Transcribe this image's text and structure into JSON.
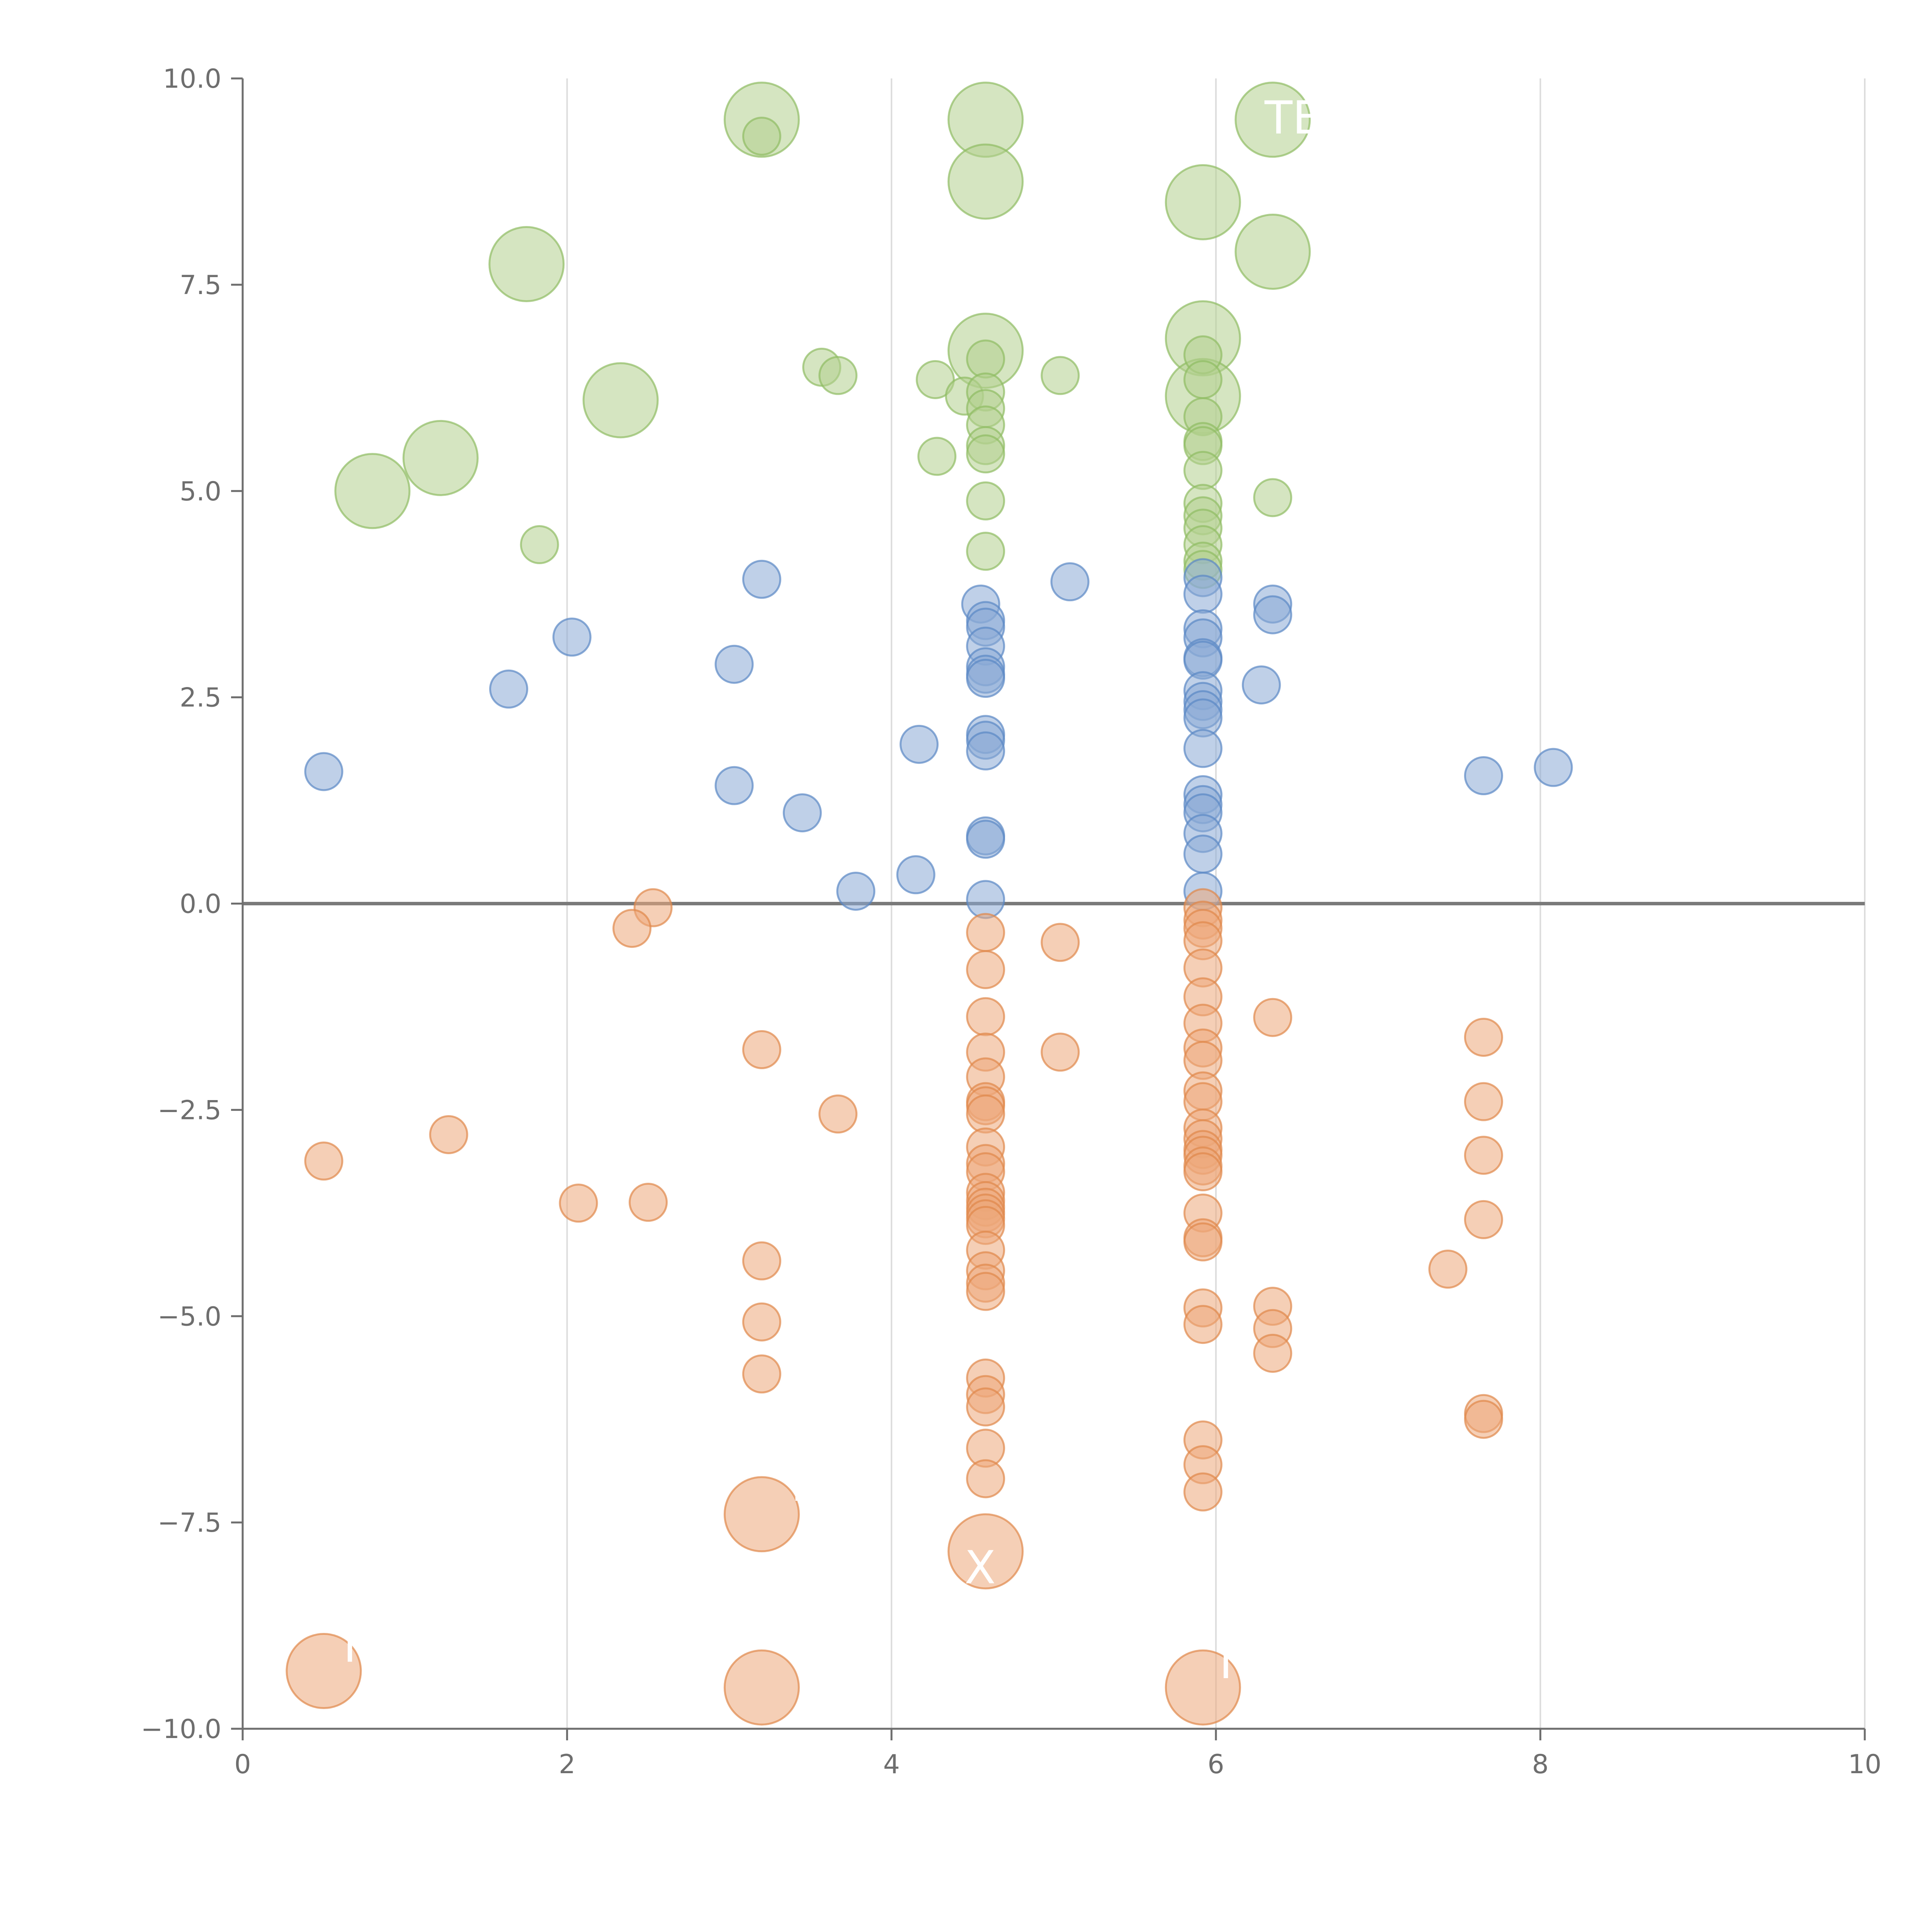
{
  "chart_data": {
    "type": "scatter",
    "title": "",
    "xlabel": "",
    "ylabel": "",
    "xlim": [
      0,
      10
    ],
    "ylim": [
      -10,
      10
    ],
    "grid": "vertical",
    "zero_line": 0,
    "x_ticks": [
      0,
      2,
      4,
      6,
      8,
      10
    ],
    "x_tick_labels": [
      "0",
      "2",
      "4",
      "6",
      "8",
      "10"
    ],
    "y_ticks": [
      10,
      7.5,
      5,
      2.5,
      0,
      -2.5,
      -5,
      -7.5,
      -10
    ],
    "y_tick_labels": [
      "10.0",
      "7.5",
      "5.0",
      "2.5",
      "0.0",
      "−2.5",
      "−5.0",
      "−7.5",
      "−10.0"
    ],
    "colors": {
      "green_fill": "#b2cf8e",
      "green_edge": "#8fbc63",
      "blue_fill": "#8aa9d6",
      "blue_edge": "#5a87c4",
      "orange_fill": "#eca87a",
      "orange_edge": "#e0884a",
      "axis": "#6e6e6e",
      "zero_line": "#7a7a7a",
      "grid": "#dcdcdc",
      "annotation": "#ffffff"
    },
    "series": [
      {
        "name": "green",
        "color_key": "green",
        "points": [
          [
            3.2,
            9.5,
            3
          ],
          [
            3.2,
            9.3,
            1
          ],
          [
            4.58,
            9.5,
            3
          ],
          [
            4.58,
            8.75,
            3
          ],
          [
            5.92,
            8.5,
            3
          ],
          [
            6.35,
            9.5,
            3
          ],
          [
            6.35,
            7.9,
            3
          ],
          [
            1.75,
            7.75,
            3
          ],
          [
            5.92,
            6.85,
            3
          ],
          [
            4.58,
            6.7,
            3
          ],
          [
            4.58,
            6.6,
            1
          ],
          [
            2.33,
            6.1,
            3
          ],
          [
            5.92,
            6.15,
            3
          ],
          [
            5.92,
            6.65,
            1
          ],
          [
            5.92,
            6.35,
            1
          ],
          [
            3.57,
            6.5,
            1
          ],
          [
            3.67,
            6.4,
            1
          ],
          [
            4.27,
            6.35,
            1
          ],
          [
            4.45,
            6.15,
            1
          ],
          [
            4.58,
            6.2,
            1
          ],
          [
            4.58,
            6.0,
            1
          ],
          [
            4.58,
            5.8,
            1
          ],
          [
            4.58,
            5.55,
            1
          ],
          [
            4.58,
            5.45,
            1
          ],
          [
            5.04,
            6.4,
            1
          ],
          [
            5.92,
            5.9,
            1
          ],
          [
            5.92,
            5.6,
            1
          ],
          [
            5.92,
            5.55,
            1
          ],
          [
            5.92,
            5.25,
            1
          ],
          [
            1.22,
            5.4,
            3
          ],
          [
            0.8,
            5.0,
            3
          ],
          [
            4.28,
            5.42,
            1
          ],
          [
            4.58,
            4.88,
            1
          ],
          [
            5.92,
            4.85,
            1
          ],
          [
            5.92,
            4.7,
            1
          ],
          [
            5.92,
            4.55,
            1
          ],
          [
            5.92,
            4.35,
            1
          ],
          [
            5.92,
            4.15,
            1
          ],
          [
            5.92,
            4.05,
            1
          ],
          [
            6.35,
            4.92,
            1
          ],
          [
            1.83,
            4.35,
            1
          ],
          [
            4.58,
            4.27,
            1
          ]
        ]
      },
      {
        "name": "blue",
        "color_key": "blue",
        "points": [
          [
            3.2,
            3.93,
            1
          ],
          [
            5.1,
            3.9,
            1
          ],
          [
            2.03,
            3.23,
            1
          ],
          [
            1.64,
            2.6,
            1
          ],
          [
            3.03,
            2.9,
            1
          ],
          [
            0.5,
            1.6,
            1
          ],
          [
            3.03,
            1.43,
            1
          ],
          [
            3.45,
            1.1,
            1
          ],
          [
            3.78,
            0.15,
            1
          ],
          [
            4.15,
            0.35,
            1
          ],
          [
            4.17,
            1.93,
            1
          ],
          [
            4.55,
            3.63,
            1
          ],
          [
            4.58,
            3.43,
            1
          ],
          [
            4.58,
            3.35,
            1
          ],
          [
            4.58,
            3.12,
            1
          ],
          [
            4.58,
            2.87,
            1
          ],
          [
            4.58,
            2.78,
            1
          ],
          [
            4.58,
            2.73,
            1
          ],
          [
            4.58,
            2.05,
            1
          ],
          [
            4.58,
            1.98,
            1
          ],
          [
            4.58,
            1.85,
            1
          ],
          [
            4.58,
            0.82,
            1
          ],
          [
            4.58,
            0.78,
            1
          ],
          [
            4.58,
            0.05,
            1
          ],
          [
            5.92,
            3.95,
            1
          ],
          [
            5.92,
            3.75,
            1
          ],
          [
            5.92,
            3.33,
            1
          ],
          [
            5.92,
            3.22,
            1
          ],
          [
            5.92,
            2.98,
            1
          ],
          [
            5.92,
            2.95,
            1
          ],
          [
            5.92,
            2.58,
            1
          ],
          [
            5.92,
            2.45,
            1
          ],
          [
            5.92,
            2.35,
            1
          ],
          [
            5.92,
            2.25,
            1
          ],
          [
            5.92,
            1.88,
            1
          ],
          [
            5.92,
            1.32,
            1
          ],
          [
            5.92,
            1.2,
            1
          ],
          [
            5.92,
            1.1,
            1
          ],
          [
            5.92,
            0.85,
            1
          ],
          [
            5.92,
            0.6,
            1
          ],
          [
            5.92,
            0.15,
            1
          ],
          [
            6.28,
            2.65,
            1
          ],
          [
            6.35,
            3.63,
            1
          ],
          [
            6.35,
            3.5,
            1
          ],
          [
            7.65,
            1.55,
            1
          ],
          [
            8.08,
            1.65,
            1
          ]
        ]
      },
      {
        "name": "orange",
        "color_key": "orange",
        "points": [
          [
            2.53,
            -0.05,
            1
          ],
          [
            2.4,
            -0.3,
            1
          ],
          [
            3.2,
            -1.77,
            1
          ],
          [
            3.67,
            -2.55,
            1
          ],
          [
            1.27,
            -2.8,
            1
          ],
          [
            0.5,
            -3.12,
            1
          ],
          [
            2.07,
            -3.63,
            1
          ],
          [
            2.5,
            -3.62,
            1
          ],
          [
            3.2,
            -4.33,
            1
          ],
          [
            3.2,
            -5.07,
            1
          ],
          [
            3.2,
            -5.7,
            1
          ],
          [
            4.58,
            -0.35,
            1
          ],
          [
            4.58,
            -0.8,
            1
          ],
          [
            4.58,
            -1.37,
            1
          ],
          [
            4.58,
            -1.8,
            1
          ],
          [
            4.58,
            -2.1,
            1
          ],
          [
            4.58,
            -2.4,
            1
          ],
          [
            4.58,
            -2.45,
            1
          ],
          [
            4.58,
            -2.55,
            1
          ],
          [
            4.58,
            -2.95,
            1
          ],
          [
            4.58,
            -3.15,
            1
          ],
          [
            4.58,
            -3.25,
            1
          ],
          [
            4.58,
            -3.5,
            1
          ],
          [
            4.58,
            -3.6,
            1
          ],
          [
            4.58,
            -3.68,
            1
          ],
          [
            4.58,
            -3.75,
            1
          ],
          [
            4.58,
            -3.82,
            1
          ],
          [
            4.58,
            -3.9,
            1
          ],
          [
            4.58,
            -4.2,
            1
          ],
          [
            4.58,
            -4.45,
            1
          ],
          [
            4.58,
            -4.6,
            1
          ],
          [
            4.58,
            -4.7,
            1
          ],
          [
            4.58,
            -5.75,
            1
          ],
          [
            4.58,
            -5.95,
            1
          ],
          [
            4.58,
            -6.1,
            1
          ],
          [
            4.58,
            -6.6,
            1
          ],
          [
            4.58,
            -6.97,
            1
          ],
          [
            5.04,
            -0.47,
            1
          ],
          [
            5.04,
            -1.8,
            1
          ],
          [
            5.92,
            -0.05,
            1
          ],
          [
            5.92,
            -0.2,
            1
          ],
          [
            5.92,
            -0.3,
            1
          ],
          [
            5.92,
            -0.45,
            1
          ],
          [
            5.92,
            -0.78,
            1
          ],
          [
            5.92,
            -1.13,
            1
          ],
          [
            5.92,
            -1.45,
            1
          ],
          [
            5.92,
            -1.75,
            1
          ],
          [
            5.92,
            -1.9,
            1
          ],
          [
            5.92,
            -2.27,
            1
          ],
          [
            5.92,
            -2.4,
            1
          ],
          [
            5.92,
            -2.72,
            1
          ],
          [
            5.92,
            -2.85,
            1
          ],
          [
            5.92,
            -2.98,
            1
          ],
          [
            5.92,
            -3.05,
            1
          ],
          [
            5.92,
            -3.18,
            1
          ],
          [
            5.92,
            -3.25,
            1
          ],
          [
            5.92,
            -3.75,
            1
          ],
          [
            5.92,
            -4.05,
            1
          ],
          [
            5.92,
            -4.1,
            1
          ],
          [
            5.92,
            -4.9,
            1
          ],
          [
            5.92,
            -5.1,
            1
          ],
          [
            5.92,
            -6.5,
            1
          ],
          [
            5.92,
            -6.8,
            1
          ],
          [
            5.92,
            -7.13,
            1
          ],
          [
            6.35,
            -1.38,
            1
          ],
          [
            6.35,
            -4.88,
            1
          ],
          [
            6.35,
            -5.15,
            1
          ],
          [
            6.35,
            -5.45,
            1
          ],
          [
            7.43,
            -4.43,
            1
          ],
          [
            7.65,
            -1.62,
            1
          ],
          [
            7.65,
            -2.4,
            1
          ],
          [
            7.65,
            -3.05,
            1
          ],
          [
            7.65,
            -3.83,
            1
          ],
          [
            7.65,
            -6.18,
            1
          ],
          [
            7.65,
            -6.25,
            1
          ],
          [
            3.2,
            -7.4,
            3
          ],
          [
            4.58,
            -7.85,
            3
          ],
          [
            0.5,
            -9.3,
            3
          ],
          [
            3.2,
            -9.5,
            3
          ],
          [
            5.92,
            -9.5,
            3
          ]
        ]
      }
    ],
    "annotations": [
      {
        "text": "TE",
        "x": 6.3,
        "y": 9.52
      },
      {
        "text": "L",
        "x": 3.38,
        "y": -7.05
      },
      {
        "text": "X",
        "x": 4.45,
        "y": -8.05
      },
      {
        "text": "M",
        "x": 0.62,
        "y": -9.0
      },
      {
        "text": "N",
        "x": 6.02,
        "y": -9.2
      }
    ]
  }
}
